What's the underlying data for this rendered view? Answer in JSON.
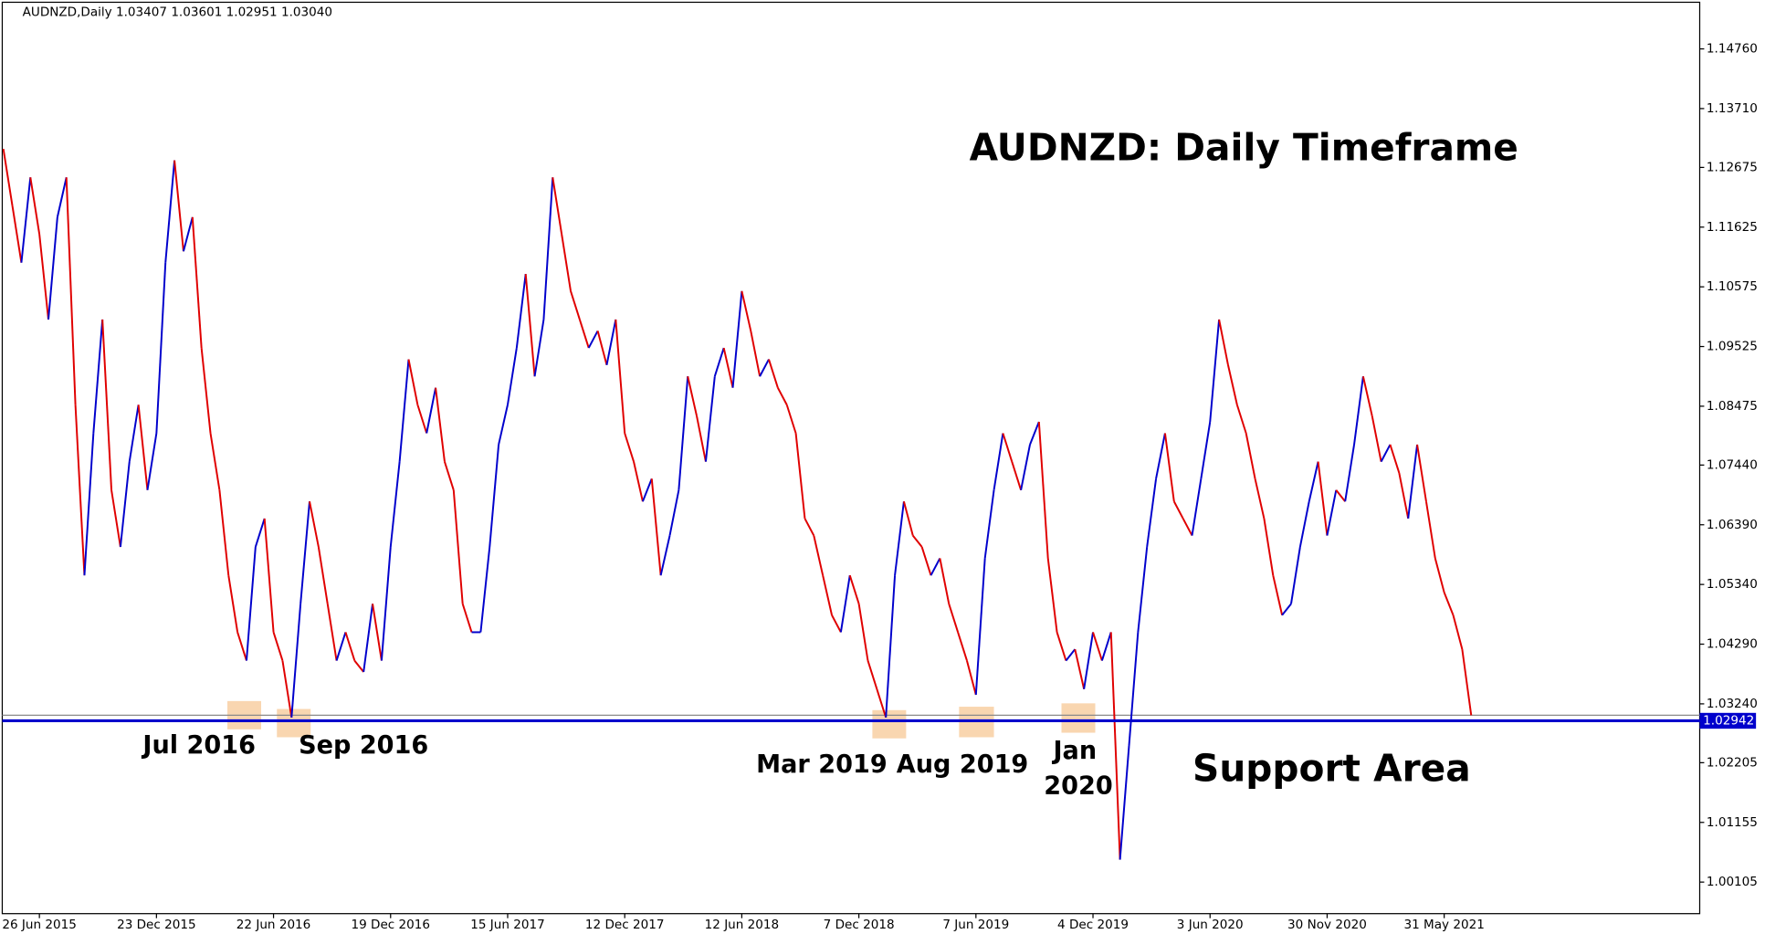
{
  "chart_data": {
    "type": "line",
    "title": "AUDNZD,Daily 1.03407 1.03601 1.02951 1.03040",
    "headline": "AUDNZD: Daily Timeframe",
    "support_label": "Support Area",
    "annotations": [
      [
        "Jul 2016"
      ],
      [
        "Sep 2016"
      ],
      [
        "Mar 2019"
      ],
      [
        "Aug 2019"
      ],
      [
        "Jan",
        "2020"
      ]
    ],
    "up_color": "#0000cc",
    "down_color": "#e00000",
    "support_line": {
      "value": 1.02942,
      "color": "#0000cc"
    },
    "categories": [
      null,
      null,
      null,
      null,
      "26 Jun 2015",
      null,
      null,
      null,
      null,
      null,
      null,
      null,
      null,
      null,
      null,
      null,
      null,
      "23 Dec 2015",
      null,
      null,
      null,
      null,
      null,
      null,
      null,
      null,
      null,
      null,
      null,
      null,
      "22 Jun 2016",
      null,
      null,
      null,
      null,
      null,
      null,
      null,
      null,
      null,
      null,
      null,
      null,
      "19 Dec 2016",
      null,
      null,
      null,
      null,
      null,
      null,
      null,
      null,
      null,
      null,
      null,
      null,
      "15 Jun 2017",
      null,
      null,
      null,
      null,
      null,
      null,
      null,
      null,
      null,
      null,
      null,
      null,
      "12 Dec 2017",
      null,
      null,
      null,
      null,
      null,
      null,
      null,
      null,
      null,
      null,
      null,
      null,
      "12 Jun 2018",
      null,
      null,
      null,
      null,
      null,
      null,
      null,
      null,
      null,
      null,
      null,
      null,
      "7 Dec 2018",
      null,
      null,
      null,
      null,
      null,
      null,
      null,
      null,
      null,
      null,
      null,
      null,
      "7 Jun 2019",
      null,
      null,
      null,
      null,
      null,
      null,
      null,
      null,
      null,
      null,
      null,
      null,
      "4 Dec 2019",
      null,
      null,
      null,
      null,
      null,
      null,
      null,
      null,
      null,
      null,
      null,
      null,
      "3 Jun 2020",
      null,
      null,
      null,
      null,
      null,
      null,
      null,
      null,
      null,
      null,
      null,
      null,
      "30 Nov 2020",
      null,
      null,
      null,
      null,
      null,
      null,
      null,
      null,
      null,
      null,
      null,
      null,
      "31 May 2021",
      null,
      null,
      null
    ],
    "values": [
      1.13,
      1.12,
      1.11,
      1.125,
      1.115,
      1.1,
      1.118,
      1.125,
      1.085,
      1.055,
      1.08,
      1.1,
      1.07,
      1.06,
      1.075,
      1.085,
      1.07,
      1.08,
      1.11,
      1.128,
      1.112,
      1.118,
      1.095,
      1.08,
      1.07,
      1.055,
      1.045,
      1.04,
      1.06,
      1.065,
      1.045,
      1.04,
      1.03,
      1.05,
      1.068,
      1.06,
      1.05,
      1.04,
      1.045,
      1.04,
      1.038,
      1.05,
      1.04,
      1.06,
      1.075,
      1.093,
      1.085,
      1.08,
      1.088,
      1.075,
      1.07,
      1.05,
      1.045,
      1.045,
      1.06,
      1.078,
      1.085,
      1.095,
      1.108,
      1.09,
      1.1,
      1.125,
      1.115,
      1.105,
      1.1,
      1.095,
      1.098,
      1.092,
      1.1,
      1.08,
      1.075,
      1.068,
      1.072,
      1.055,
      1.062,
      1.07,
      1.09,
      1.083,
      1.075,
      1.09,
      1.095,
      1.088,
      1.105,
      1.098,
      1.09,
      1.093,
      1.088,
      1.085,
      1.08,
      1.065,
      1.062,
      1.055,
      1.048,
      1.045,
      1.055,
      1.05,
      1.04,
      1.035,
      1.03,
      1.055,
      1.068,
      1.062,
      1.06,
      1.055,
      1.058,
      1.05,
      1.045,
      1.04,
      1.034,
      1.058,
      1.07,
      1.08,
      1.075,
      1.07,
      1.078,
      1.082,
      1.058,
      1.045,
      1.04,
      1.042,
      1.035,
      1.045,
      1.04,
      1.045,
      1.005,
      1.025,
      1.045,
      1.06,
      1.072,
      1.08,
      1.068,
      1.065,
      1.062,
      1.072,
      1.082,
      1.1,
      1.092,
      1.085,
      1.08,
      1.072,
      1.065,
      1.055,
      1.048,
      1.05,
      1.06,
      1.068,
      1.075,
      1.062,
      1.07,
      1.068,
      1.078,
      1.09,
      1.083,
      1.075,
      1.078,
      1.073,
      1.065,
      1.078,
      1.068,
      1.058,
      1.052,
      1.048,
      1.042,
      1.0304
    ],
    "ylim": [
      0.9955,
      1.1558
    ],
    "yticks": [
      {
        "value": 1.00105,
        "label": "1.00105"
      },
      {
        "value": 1.01155,
        "label": "1.01155"
      },
      {
        "value": 1.02205,
        "label": "1.02205"
      },
      {
        "value": 1.0324,
        "label": "1.03240"
      },
      {
        "value": 1.0429,
        "label": "1.04290"
      },
      {
        "value": 1.0534,
        "label": "1.05340"
      },
      {
        "value": 1.0639,
        "label": "1.06390"
      },
      {
        "value": 1.0744,
        "label": "1.07440"
      },
      {
        "value": 1.08475,
        "label": "1.08475"
      },
      {
        "value": 1.09525,
        "label": "1.09525"
      },
      {
        "value": 1.10575,
        "label": "1.10575"
      },
      {
        "value": 1.11625,
        "label": "1.11625"
      },
      {
        "value": 1.12675,
        "label": "1.12675"
      },
      {
        "value": 1.1371,
        "label": "1.13710"
      },
      {
        "value": 1.1476,
        "label": "1.14760"
      }
    ]
  }
}
